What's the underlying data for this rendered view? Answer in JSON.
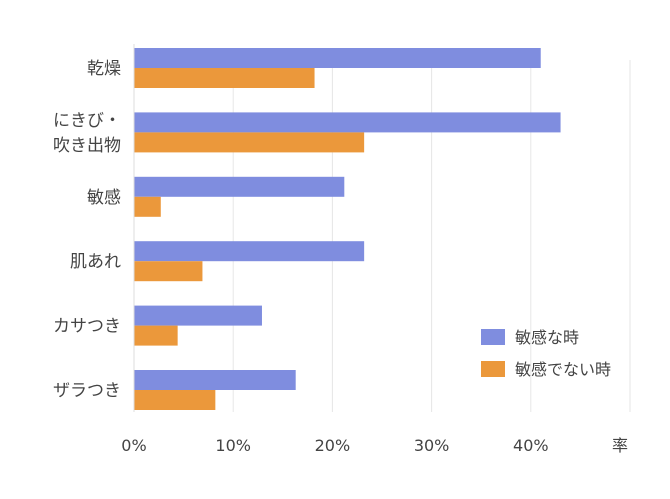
{
  "chart_data": {
    "type": "bar",
    "orientation": "horizontal",
    "categories": [
      [
        "乾燥"
      ],
      [
        "にきび・",
        "吹き出物"
      ],
      [
        "敏感"
      ],
      [
        "肌あれ"
      ],
      [
        "カサつき"
      ],
      [
        "ザラつき"
      ]
    ],
    "series": [
      {
        "name": "敏感な時",
        "color": "#7f8ddf",
        "values": [
          41,
          43,
          21.2,
          23.2,
          12.9,
          16.3
        ]
      },
      {
        "name": "敏感でない時",
        "color": "#eb983b",
        "values": [
          18.2,
          23.2,
          2.7,
          6.9,
          4.4,
          8.2
        ]
      }
    ],
    "x_ticks": [
      "0%",
      "10%",
      "20%",
      "30%",
      "40%"
    ],
    "x_tick_values": [
      0,
      10,
      20,
      30,
      40
    ],
    "xlim": [
      0,
      50
    ],
    "xlabel": "率",
    "grid": true,
    "legend_position": "bottom-right"
  }
}
